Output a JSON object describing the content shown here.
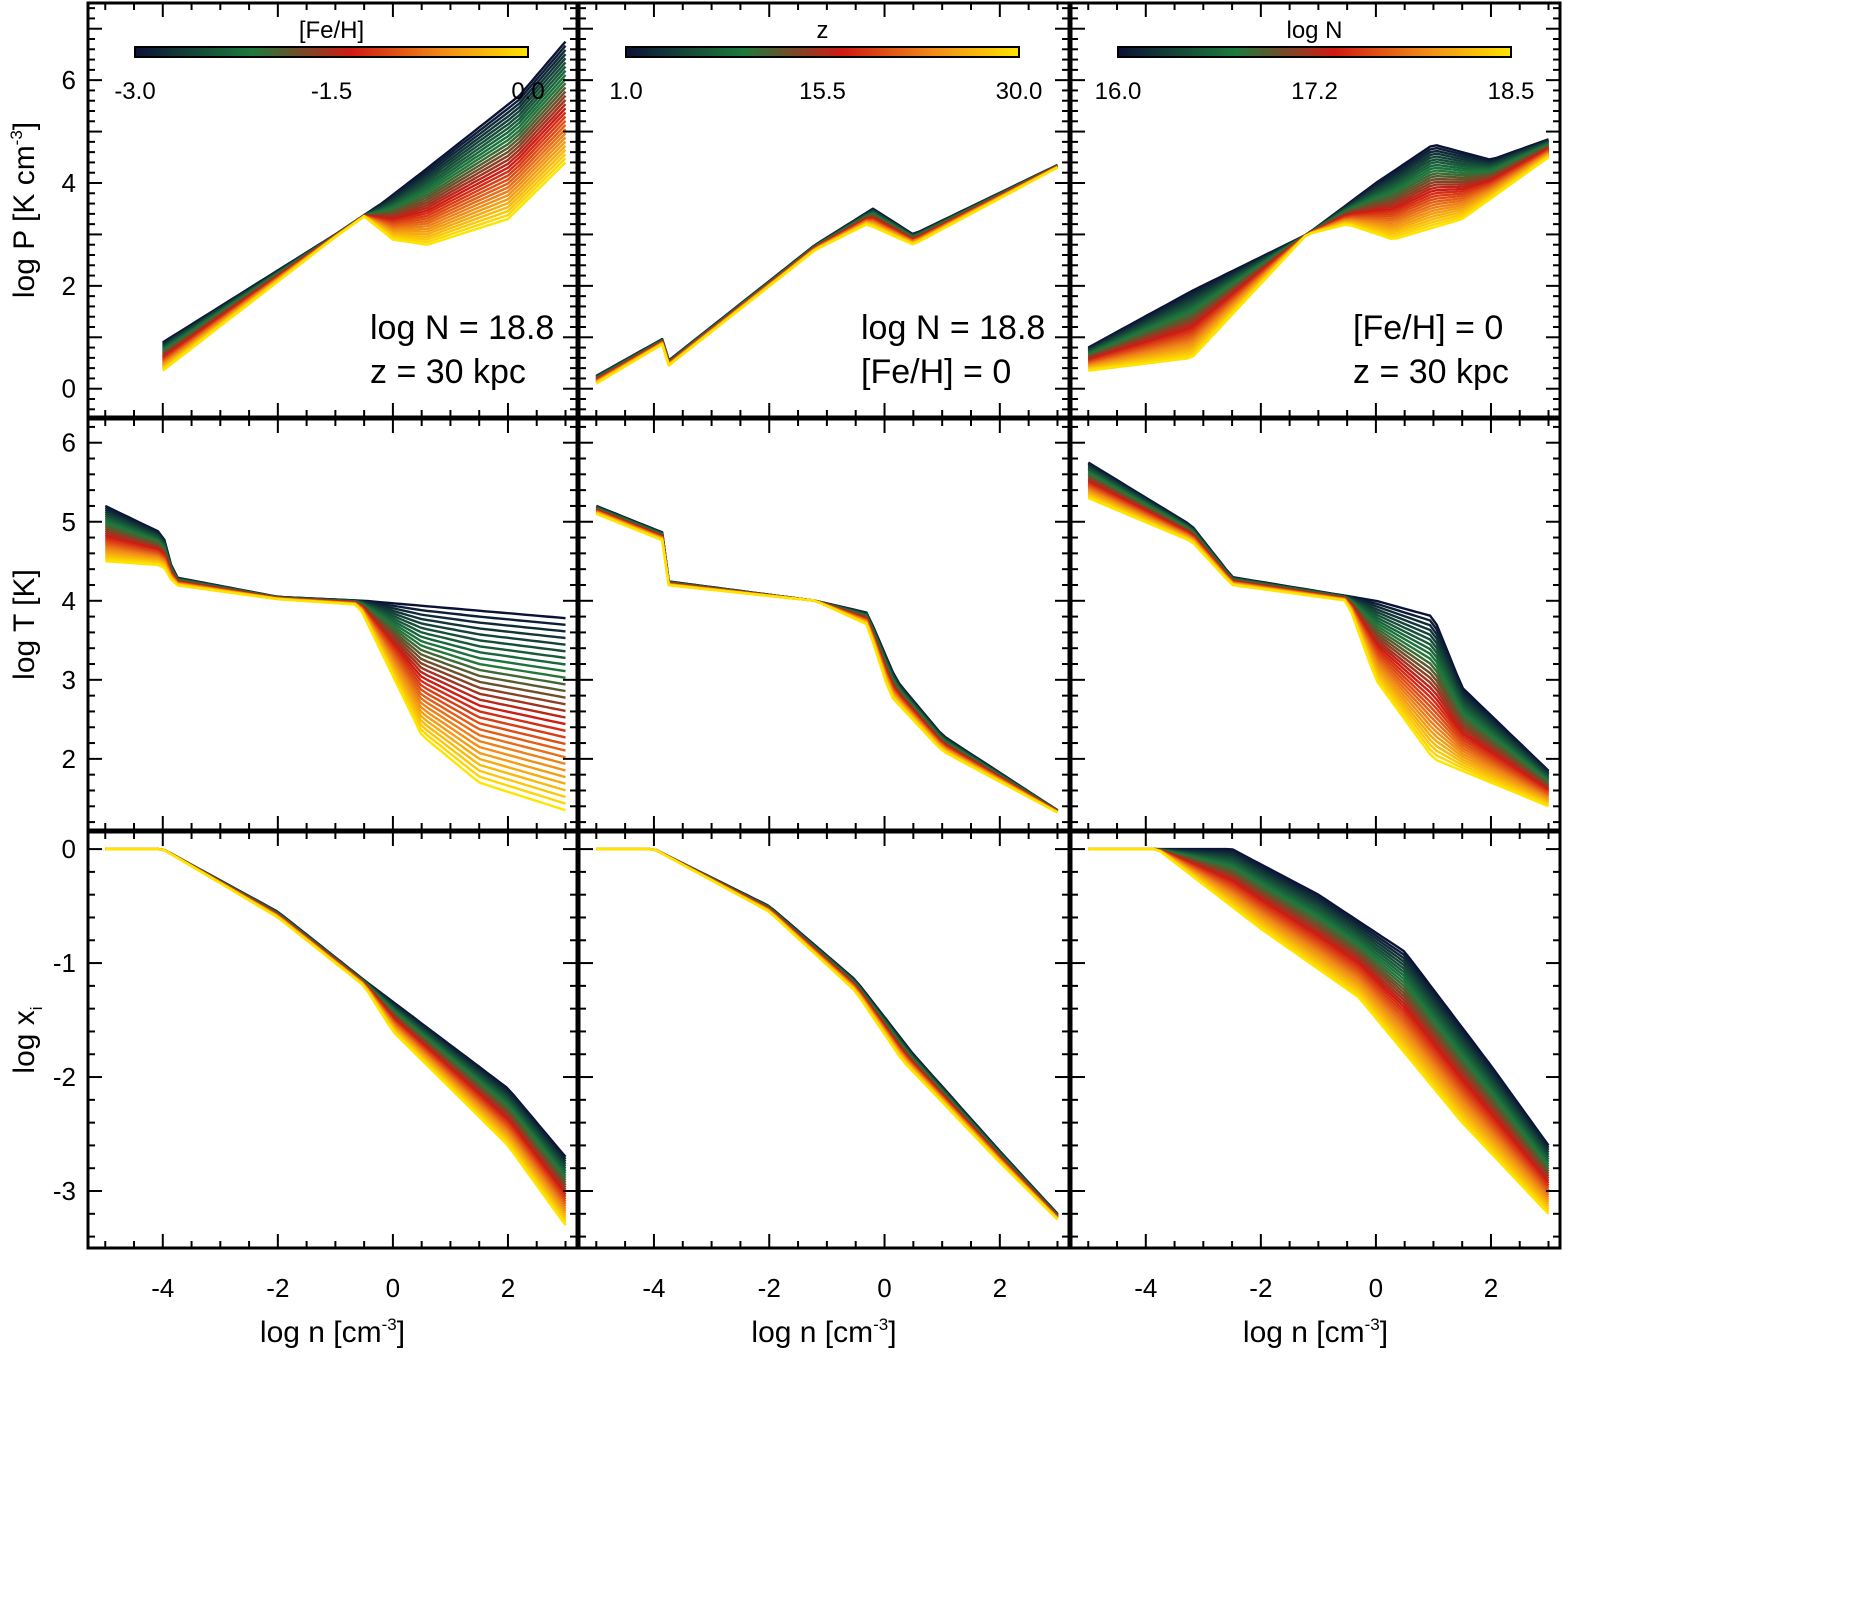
{
  "figure": {
    "colors": {
      "low": "#0b1236",
      "c2": "#1e7a3c",
      "mid": "#d01a14",
      "c4": "#f08a18",
      "high": "#ffe400"
    }
  },
  "chart_data": [
    {
      "type": "line",
      "panel": "r1c1",
      "family_param": "[Fe/H]",
      "ylabel": "log P [K cm-3]",
      "ylabel_main": "log P [K cm",
      "ylabel_sup": "-3",
      "ylabel_end": "]",
      "xlim": [
        -5.3,
        3.2
      ],
      "ylim": [
        -0.55,
        7.5
      ],
      "yticks": [
        0,
        2,
        4,
        6
      ],
      "ytick_labels": [
        "0",
        "2",
        "4",
        "6"
      ],
      "colorbar": {
        "title": "[Fe/H]",
        "ticks": [
          "-3.0",
          "-1.5",
          "0.0"
        ]
      },
      "annotation": [
        "log N = 18.8",
        "z = 30 kpc"
      ],
      "envelope": {
        "hi": [
          [
            -4.0,
            0.9
          ],
          [
            -1.0,
            3.0
          ],
          [
            -0.2,
            3.6
          ],
          [
            0.5,
            4.2
          ],
          [
            2.2,
            5.7
          ],
          [
            3.0,
            6.75
          ]
        ],
        "lo": [
          [
            -4.0,
            0.35
          ],
          [
            -1.0,
            2.95
          ],
          [
            -0.5,
            3.35
          ],
          [
            0.0,
            2.9
          ],
          [
            0.6,
            2.8
          ],
          [
            2.0,
            3.3
          ],
          [
            3.0,
            4.4
          ]
        ]
      }
    },
    {
      "type": "line",
      "panel": "r1c2",
      "family_param": "z",
      "xlim": [
        -5.3,
        3.2
      ],
      "ylim": [
        -0.55,
        7.5
      ],
      "colorbar": {
        "title": "z",
        "ticks": [
          "1.0",
          "15.5",
          "30.0"
        ]
      },
      "annotation": [
        "log N = 18.8",
        "[Fe/H] = 0"
      ],
      "envelope": {
        "hi": [
          [
            -5.0,
            0.25
          ],
          [
            -3.8,
            1.0
          ],
          [
            -3.8,
            0.5
          ],
          [
            -1.2,
            2.8
          ],
          [
            -0.2,
            3.5
          ],
          [
            0.5,
            3.0
          ],
          [
            3.0,
            4.35
          ]
        ],
        "lo": [
          [
            -5.0,
            0.1
          ],
          [
            -3.8,
            0.9
          ],
          [
            -3.8,
            0.4
          ],
          [
            -1.2,
            2.7
          ],
          [
            -0.3,
            3.2
          ],
          [
            0.5,
            2.8
          ],
          [
            3.0,
            4.3
          ]
        ]
      }
    },
    {
      "type": "line",
      "panel": "r1c3",
      "family_param": "log N",
      "xlim": [
        -5.3,
        3.2
      ],
      "ylim": [
        -0.55,
        7.5
      ],
      "colorbar": {
        "title": "log N",
        "ticks": [
          "16.0",
          "17.2",
          "18.5"
        ]
      },
      "annotation": [
        "[Fe/H] = 0",
        "z = 30 kpc"
      ],
      "envelope": {
        "hi": [
          [
            -5.0,
            0.8
          ],
          [
            -3.2,
            1.9
          ],
          [
            -1.2,
            3.0
          ],
          [
            0.0,
            4.0
          ],
          [
            1.0,
            4.75
          ],
          [
            2.0,
            4.45
          ],
          [
            3.0,
            4.85
          ]
        ],
        "lo": [
          [
            -5.0,
            0.35
          ],
          [
            -3.2,
            0.6
          ],
          [
            -1.2,
            3.0
          ],
          [
            -0.5,
            3.2
          ],
          [
            0.3,
            2.9
          ],
          [
            1.5,
            3.3
          ],
          [
            3.0,
            4.5
          ]
        ]
      }
    },
    {
      "type": "line",
      "panel": "r2c1",
      "family_param": "[Fe/H]",
      "ylabel": "log T [K]",
      "xlim": [
        -5.3,
        3.2
      ],
      "ylim": [
        1.1,
        6.3
      ],
      "yticks": [
        2,
        3,
        4,
        5,
        6
      ],
      "ytick_labels": [
        "2",
        "3",
        "4",
        "5",
        "6"
      ],
      "envelope": {
        "hi": [
          [
            -5.0,
            5.2
          ],
          [
            -4.0,
            4.85
          ],
          [
            -3.8,
            4.3
          ],
          [
            -2.0,
            4.05
          ],
          [
            -0.5,
            4.0
          ],
          [
            3.0,
            3.78
          ]
        ],
        "lo": [
          [
            -5.0,
            4.5
          ],
          [
            -4.0,
            4.45
          ],
          [
            -3.8,
            4.2
          ],
          [
            -2.0,
            4.02
          ],
          [
            -0.6,
            3.95
          ],
          [
            0.5,
            2.3
          ],
          [
            1.5,
            1.7
          ],
          [
            3.0,
            1.35
          ]
        ]
      }
    },
    {
      "type": "line",
      "panel": "r2c2",
      "family_param": "z",
      "xlim": [
        -5.3,
        3.2
      ],
      "ylim": [
        1.1,
        6.3
      ],
      "envelope": {
        "hi": [
          [
            -5.0,
            5.2
          ],
          [
            -3.8,
            4.85
          ],
          [
            -3.8,
            4.25
          ],
          [
            -1.2,
            4.0
          ],
          [
            -0.3,
            3.85
          ],
          [
            0.2,
            3.0
          ],
          [
            1.0,
            2.3
          ],
          [
            3.0,
            1.35
          ]
        ],
        "lo": [
          [
            -5.0,
            5.1
          ],
          [
            -3.8,
            4.75
          ],
          [
            -3.8,
            4.2
          ],
          [
            -1.2,
            4.0
          ],
          [
            -0.3,
            3.7
          ],
          [
            0.1,
            2.8
          ],
          [
            1.0,
            2.1
          ],
          [
            3.0,
            1.32
          ]
        ]
      }
    },
    {
      "type": "line",
      "panel": "r2c3",
      "family_param": "log N",
      "xlim": [
        -5.3,
        3.2
      ],
      "ylim": [
        1.1,
        6.3
      ],
      "envelope": {
        "hi": [
          [
            -5.0,
            5.75
          ],
          [
            -3.2,
            4.95
          ],
          [
            -2.5,
            4.3
          ],
          [
            0.0,
            4.0
          ],
          [
            1.0,
            3.8
          ],
          [
            1.5,
            2.9
          ],
          [
            3.0,
            1.85
          ]
        ],
        "lo": [
          [
            -5.0,
            5.3
          ],
          [
            -3.2,
            4.75
          ],
          [
            -2.5,
            4.2
          ],
          [
            -0.5,
            4.0
          ],
          [
            0.0,
            3.0
          ],
          [
            1.0,
            2.0
          ],
          [
            3.0,
            1.4
          ]
        ]
      }
    },
    {
      "type": "line",
      "panel": "r3c1",
      "family_param": "[Fe/H]",
      "ylabel": "log x_i",
      "ylabel_main": "log x",
      "ylabel_sub": "i",
      "xlim": [
        -5.3,
        3.2
      ],
      "ylim": [
        -3.5,
        0.15
      ],
      "yticks": [
        -3,
        -2,
        -1,
        0
      ],
      "ytick_labels": [
        "-3",
        "-2",
        "-1",
        "0"
      ],
      "xlabel": "log n [cm-3]",
      "xlabel_main": "log n [cm",
      "xlabel_sup": "-3",
      "xlabel_end": "]",
      "xticks": [
        -4,
        -2,
        0,
        2
      ],
      "xtick_labels": [
        "-4",
        "-2",
        "0",
        "2"
      ],
      "envelope": {
        "hi": [
          [
            -5.0,
            0.0
          ],
          [
            -4.0,
            0.0
          ],
          [
            -2.0,
            -0.55
          ],
          [
            -0.5,
            -1.15
          ],
          [
            2.0,
            -2.1
          ],
          [
            3.0,
            -2.7
          ]
        ],
        "lo": [
          [
            -5.0,
            0.0
          ],
          [
            -4.0,
            0.0
          ],
          [
            -2.0,
            -0.6
          ],
          [
            -0.5,
            -1.2
          ],
          [
            0.0,
            -1.6
          ],
          [
            2.0,
            -2.6
          ],
          [
            3.0,
            -3.3
          ]
        ]
      }
    },
    {
      "type": "line",
      "panel": "r3c2",
      "family_param": "z",
      "xlim": [
        -5.3,
        3.2
      ],
      "ylim": [
        -3.5,
        0.15
      ],
      "xlabel": "log n [cm-3]",
      "xlabel_main": "log n [cm",
      "xlabel_sup": "-3",
      "xlabel_end": "]",
      "xticks": [
        -4,
        -2,
        0,
        2
      ],
      "xtick_labels": [
        "-4",
        "-2",
        "0",
        "2"
      ],
      "envelope": {
        "hi": [
          [
            -5.0,
            0.0
          ],
          [
            -4.0,
            0.0
          ],
          [
            -2.0,
            -0.5
          ],
          [
            -0.5,
            -1.15
          ],
          [
            0.5,
            -1.8
          ],
          [
            2.0,
            -2.65
          ],
          [
            3.0,
            -3.2
          ]
        ],
        "lo": [
          [
            -5.0,
            0.0
          ],
          [
            -4.0,
            0.0
          ],
          [
            -2.0,
            -0.55
          ],
          [
            -0.5,
            -1.25
          ],
          [
            0.3,
            -1.85
          ],
          [
            2.0,
            -2.75
          ],
          [
            3.0,
            -3.25
          ]
        ]
      }
    },
    {
      "type": "line",
      "panel": "r3c3",
      "family_param": "log N",
      "xlim": [
        -5.3,
        3.2
      ],
      "ylim": [
        -3.5,
        0.15
      ],
      "xlabel": "log n [cm-3]",
      "xlabel_main": "log n [cm",
      "xlabel_sup": "-3",
      "xlabel_end": "]",
      "xticks": [
        -4,
        -2,
        0,
        2
      ],
      "xtick_labels": [
        "-4",
        "-2",
        "0",
        "2"
      ],
      "envelope": {
        "hi": [
          [
            -5.0,
            0.0
          ],
          [
            -2.5,
            0.0
          ],
          [
            -1.0,
            -0.4
          ],
          [
            0.5,
            -0.9
          ],
          [
            2.0,
            -1.9
          ],
          [
            3.0,
            -2.6
          ]
        ],
        "lo": [
          [
            -5.0,
            0.0
          ],
          [
            -3.8,
            0.0
          ],
          [
            -2.0,
            -0.7
          ],
          [
            -0.3,
            -1.3
          ],
          [
            1.5,
            -2.4
          ],
          [
            3.0,
            -3.2
          ]
        ]
      }
    }
  ]
}
